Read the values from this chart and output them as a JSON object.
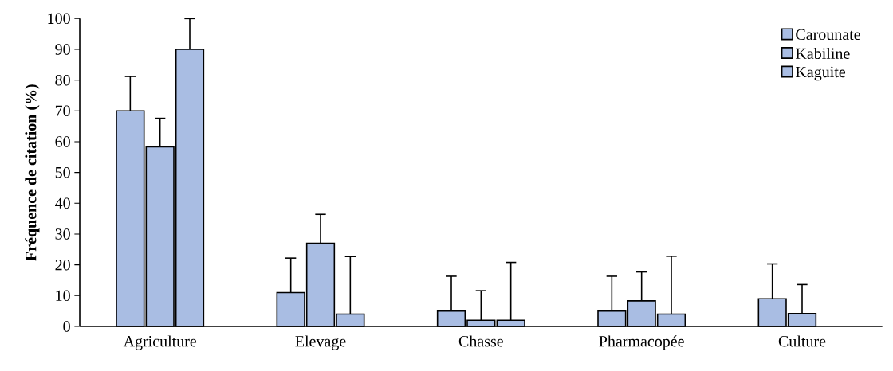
{
  "chart_data": {
    "type": "bar",
    "ylabel": "Fréquence de citation (%)",
    "categories": [
      "Agriculture",
      "Elevage",
      "Chasse",
      "Pharmacopée",
      "Culture"
    ],
    "series": [
      {
        "name": "Carounate",
        "color": "#a9bde3",
        "values": [
          70,
          11,
          5,
          5,
          9
        ],
        "errors": [
          11.2,
          11.2,
          11.3,
          11.3,
          11.3
        ]
      },
      {
        "name": "Kabiline",
        "color": "#a9bde3",
        "values": [
          58.3,
          27,
          2,
          8.3,
          4.2
        ],
        "errors": [
          9.3,
          9.4,
          9.6,
          9.4,
          9.4
        ]
      },
      {
        "name": "Kaguite",
        "color": "#a9bde3",
        "values": [
          90,
          4,
          2,
          4,
          null
        ],
        "errors": [
          10,
          18.7,
          18.8,
          18.8,
          null
        ]
      }
    ],
    "ylim": [
      0,
      100
    ],
    "yticks": [
      0,
      10,
      20,
      30,
      40,
      50,
      60,
      70,
      80,
      90,
      100
    ],
    "legend": "top right"
  }
}
